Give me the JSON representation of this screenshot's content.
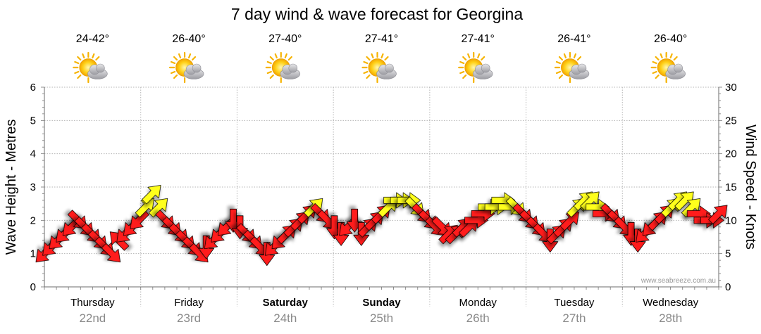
{
  "page": {
    "title": "7 day wind & wave forecast for Georgina",
    "credit": "www.seabreeze.com.au"
  },
  "colors": {
    "arrow_strong": "#ff1a1a",
    "arrow_light": "#ffff1a",
    "arrow_outline": "#000000",
    "grid": "#b5b5b5",
    "day_date": "#8a8a8a"
  },
  "days": [
    {
      "name": "Thursday",
      "date": "22nd",
      "temp": "24-42°",
      "icon": "partly-cloudy-icon",
      "bold": false
    },
    {
      "name": "Friday",
      "date": "23rd",
      "temp": "26-40°",
      "icon": "partly-cloudy-icon",
      "bold": false
    },
    {
      "name": "Saturday",
      "date": "24th",
      "temp": "27-40°",
      "icon": "partly-cloudy-icon",
      "bold": true
    },
    {
      "name": "Sunday",
      "date": "25th",
      "temp": "27-41°",
      "icon": "partly-cloudy-icon",
      "bold": true
    },
    {
      "name": "Monday",
      "date": "26th",
      "temp": "27-41°",
      "icon": "partly-cloudy-icon",
      "bold": false
    },
    {
      "name": "Tuesday",
      "date": "27th",
      "temp": "26-41°",
      "icon": "partly-cloudy-icon",
      "bold": false
    },
    {
      "name": "Wednesday",
      "date": "28th",
      "temp": "26-40°",
      "icon": "partly-cloudy-icon",
      "bold": false
    }
  ],
  "chart_data": {
    "type": "scatter",
    "title": "7 day wind & wave forecast for Georgina",
    "y_left": {
      "label": "Wave Height - Metres",
      "range": [
        0,
        6
      ],
      "ticks": [
        "0",
        "1",
        "2",
        "3",
        "4",
        "5",
        "6"
      ]
    },
    "y_right": {
      "label": "Wind Speed - Knots",
      "range": [
        0,
        30
      ],
      "ticks": [
        "0",
        "5",
        "10",
        "15",
        "20",
        "25",
        "30"
      ]
    },
    "x": {
      "range_days": [
        0,
        7
      ],
      "categories": [
        "Thursday 22nd",
        "Friday 23rd",
        "Saturday 24th",
        "Sunday 25th",
        "Monday 26th",
        "Tuesday 27th",
        "Wednesday 28th"
      ]
    },
    "grid": true,
    "series": [
      {
        "values": [
          {
            "t": 0.0,
            "knots": 5,
            "dir": "NE"
          },
          {
            "t": 0.07,
            "knots": 6,
            "dir": "NE"
          },
          {
            "t": 0.14,
            "knots": 7,
            "dir": "NE"
          },
          {
            "t": 0.21,
            "knots": 8,
            "dir": "NE"
          },
          {
            "t": 0.28,
            "knots": 9,
            "dir": "NE"
          },
          {
            "t": 0.35,
            "knots": 10,
            "dir": "NW"
          },
          {
            "t": 0.42,
            "knots": 9,
            "dir": "NW"
          },
          {
            "t": 0.49,
            "knots": 8,
            "dir": "NW"
          },
          {
            "t": 0.56,
            "knots": 7,
            "dir": "NW"
          },
          {
            "t": 0.63,
            "knots": 6,
            "dir": "NW"
          },
          {
            "t": 0.7,
            "knots": 5,
            "dir": "NW"
          },
          {
            "t": 0.77,
            "knots": 7,
            "dir": "SE"
          },
          {
            "t": 0.84,
            "knots": 8,
            "dir": "NE"
          },
          {
            "t": 0.91,
            "knots": 9,
            "dir": "NE"
          },
          {
            "t": 0.98,
            "knots": 10,
            "dir": "NE"
          },
          {
            "t": 1.05,
            "knots": 12,
            "dir": "SW"
          },
          {
            "t": 1.12,
            "knots": 14,
            "dir": "SW"
          },
          {
            "t": 1.19,
            "knots": 12,
            "dir": "SW"
          },
          {
            "t": 1.26,
            "knots": 10,
            "dir": "NW"
          },
          {
            "t": 1.33,
            "knots": 9,
            "dir": "NW"
          },
          {
            "t": 1.4,
            "knots": 8,
            "dir": "NW"
          },
          {
            "t": 1.47,
            "knots": 7,
            "dir": "NW"
          },
          {
            "t": 1.54,
            "knots": 6,
            "dir": "NW"
          },
          {
            "t": 1.61,
            "knots": 5,
            "dir": "NW"
          },
          {
            "t": 1.68,
            "knots": 6,
            "dir": "N"
          },
          {
            "t": 1.75,
            "knots": 7,
            "dir": "NE"
          },
          {
            "t": 1.82,
            "knots": 8,
            "dir": "NE"
          },
          {
            "t": 1.89,
            "knots": 9,
            "dir": "NE"
          },
          {
            "t": 1.96,
            "knots": 10,
            "dir": "N"
          },
          {
            "t": 2.03,
            "knots": 9,
            "dir": "N"
          },
          {
            "t": 2.1,
            "knots": 8,
            "dir": "NW"
          },
          {
            "t": 2.17,
            "knots": 7,
            "dir": "NW"
          },
          {
            "t": 2.24,
            "knots": 6,
            "dir": "NW"
          },
          {
            "t": 2.31,
            "knots": 5,
            "dir": "N"
          },
          {
            "t": 2.38,
            "knots": 6,
            "dir": "NE"
          },
          {
            "t": 2.45,
            "knots": 7,
            "dir": "NE"
          },
          {
            "t": 2.52,
            "knots": 8,
            "dir": "SW"
          },
          {
            "t": 2.59,
            "knots": 9,
            "dir": "SW"
          },
          {
            "t": 2.66,
            "knots": 10,
            "dir": "SW"
          },
          {
            "t": 2.73,
            "knots": 11,
            "dir": "SW"
          },
          {
            "t": 2.8,
            "knots": 12,
            "dir": "SW"
          },
          {
            "t": 2.87,
            "knots": 11,
            "dir": "NW"
          },
          {
            "t": 2.94,
            "knots": 10,
            "dir": "NW"
          },
          {
            "t": 3.01,
            "knots": 9,
            "dir": "N"
          },
          {
            "t": 3.08,
            "knots": 8,
            "dir": "N"
          },
          {
            "t": 3.15,
            "knots": 9,
            "dir": "NE"
          },
          {
            "t": 3.22,
            "knots": 10,
            "dir": "N"
          },
          {
            "t": 3.29,
            "knots": 8,
            "dir": "N"
          },
          {
            "t": 3.36,
            "knots": 9,
            "dir": "SW"
          },
          {
            "t": 3.43,
            "knots": 10,
            "dir": "SW"
          },
          {
            "t": 3.5,
            "knots": 11,
            "dir": "SW"
          },
          {
            "t": 3.57,
            "knots": 12,
            "dir": "SW"
          },
          {
            "t": 3.64,
            "knots": 13,
            "dir": "W"
          },
          {
            "t": 3.71,
            "knots": 13,
            "dir": "W"
          },
          {
            "t": 3.78,
            "knots": 13,
            "dir": "W"
          },
          {
            "t": 3.85,
            "knots": 12,
            "dir": "NW"
          },
          {
            "t": 3.92,
            "knots": 11,
            "dir": "NW"
          },
          {
            "t": 3.99,
            "knots": 10,
            "dir": "NW"
          },
          {
            "t": 4.06,
            "knots": 9,
            "dir": "NW"
          },
          {
            "t": 4.13,
            "knots": 9,
            "dir": "NW"
          },
          {
            "t": 4.2,
            "knots": 8,
            "dir": "SW"
          },
          {
            "t": 4.27,
            "knots": 8,
            "dir": "SW"
          },
          {
            "t": 4.34,
            "knots": 9,
            "dir": "SW"
          },
          {
            "t": 4.41,
            "knots": 9,
            "dir": "SW"
          },
          {
            "t": 4.48,
            "knots": 10,
            "dir": "W"
          },
          {
            "t": 4.55,
            "knots": 11,
            "dir": "W"
          },
          {
            "t": 4.62,
            "knots": 12,
            "dir": "W"
          },
          {
            "t": 4.69,
            "knots": 12,
            "dir": "W"
          },
          {
            "t": 4.76,
            "knots": 13,
            "dir": "W"
          },
          {
            "t": 4.83,
            "knots": 12,
            "dir": "W"
          },
          {
            "t": 4.9,
            "knots": 12,
            "dir": "NW"
          },
          {
            "t": 4.97,
            "knots": 11,
            "dir": "NW"
          },
          {
            "t": 5.04,
            "knots": 10,
            "dir": "NW"
          },
          {
            "t": 5.11,
            "knots": 9,
            "dir": "NW"
          },
          {
            "t": 5.18,
            "knots": 8,
            "dir": "NW"
          },
          {
            "t": 5.25,
            "knots": 7,
            "dir": "N"
          },
          {
            "t": 5.32,
            "knots": 8,
            "dir": "SW"
          },
          {
            "t": 5.39,
            "knots": 9,
            "dir": "SW"
          },
          {
            "t": 5.46,
            "knots": 10,
            "dir": "SW"
          },
          {
            "t": 5.53,
            "knots": 12,
            "dir": "SW"
          },
          {
            "t": 5.6,
            "knots": 13,
            "dir": "SW"
          },
          {
            "t": 5.67,
            "knots": 13,
            "dir": "SW"
          },
          {
            "t": 5.74,
            "knots": 12,
            "dir": "W"
          },
          {
            "t": 5.81,
            "knots": 11,
            "dir": "W"
          },
          {
            "t": 5.88,
            "knots": 11,
            "dir": "NW"
          },
          {
            "t": 5.95,
            "knots": 10,
            "dir": "NW"
          },
          {
            "t": 6.02,
            "knots": 9,
            "dir": "NW"
          },
          {
            "t": 6.09,
            "knots": 8,
            "dir": "N"
          },
          {
            "t": 6.16,
            "knots": 7,
            "dir": "N"
          },
          {
            "t": 6.23,
            "knots": 8,
            "dir": "NE"
          },
          {
            "t": 6.3,
            "knots": 9,
            "dir": "NE"
          },
          {
            "t": 6.37,
            "knots": 10,
            "dir": "SW"
          },
          {
            "t": 6.44,
            "knots": 11,
            "dir": "SW"
          },
          {
            "t": 6.51,
            "knots": 12,
            "dir": "SW"
          },
          {
            "t": 6.58,
            "knots": 13,
            "dir": "SW"
          },
          {
            "t": 6.65,
            "knots": 13,
            "dir": "SW"
          },
          {
            "t": 6.72,
            "knots": 12,
            "dir": "SW"
          },
          {
            "t": 6.79,
            "knots": 11,
            "dir": "W"
          },
          {
            "t": 6.86,
            "knots": 10,
            "dir": "W"
          },
          {
            "t": 6.93,
            "knots": 10,
            "dir": "W"
          },
          {
            "t": 7.0,
            "knots": 11,
            "dir": "SW"
          }
        ]
      }
    ]
  }
}
